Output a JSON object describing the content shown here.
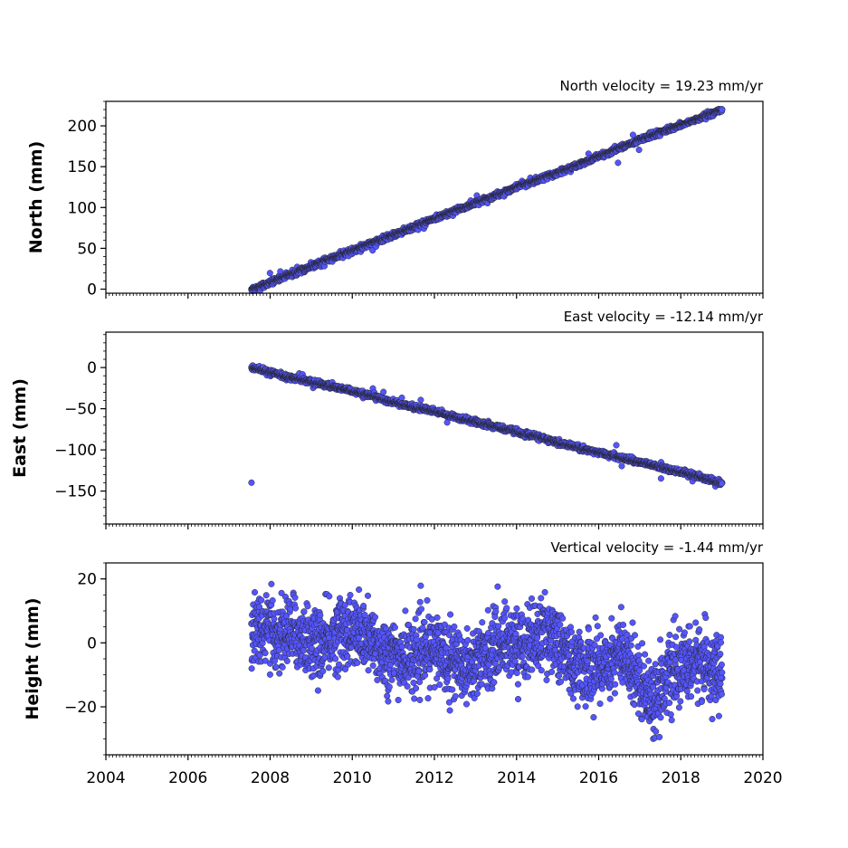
{
  "chart_data": [
    {
      "type": "scatter",
      "title": "North velocity = 19.23 mm/yr",
      "ylabel": "North (mm)",
      "xlim": [
        2004,
        2020
      ],
      "ylim": [
        -5,
        230
      ],
      "yticks": [
        0,
        50,
        100,
        150,
        200
      ],
      "ytick_labels": [
        "0",
        "50",
        "100",
        "150",
        "200"
      ],
      "x_tick_labels_shown": false,
      "marker_color": "#5555ff",
      "edge_color": "#222222",
      "series": [
        {
          "x": [
            2007.55,
            2008.0,
            2008.5,
            2009.0,
            2009.5,
            2010.0,
            2010.5,
            2011.0,
            2011.5,
            2012.0,
            2012.5,
            2013.0,
            2013.5,
            2014.0,
            2014.5,
            2015.0,
            2015.5,
            2016.0,
            2016.5,
            2017.0,
            2017.5,
            2018.0,
            2018.5,
            2019.0
          ],
          "y": [
            0,
            8,
            18,
            28,
            38,
            47,
            57,
            66,
            76,
            86,
            96,
            105,
            115,
            125,
            134,
            143,
            152,
            162,
            173,
            183,
            192,
            201,
            210,
            220
          ]
        }
      ],
      "trend": {
        "x0": 2007.55,
        "x1": 2019.05,
        "slope": 19.23,
        "y0": 0
      }
    },
    {
      "type": "scatter",
      "title": "East velocity = -12.14 mm/yr",
      "ylabel": "East (mm)",
      "xlim": [
        2004,
        2020
      ],
      "ylim": [
        -190,
        43
      ],
      "yticks": [
        0,
        -50,
        -100,
        -150
      ],
      "ytick_labels": [
        "0",
        "−50",
        "−100",
        "−150"
      ],
      "x_tick_labels_shown": false,
      "marker_color": "#5555ff",
      "edge_color": "#222222",
      "series": [
        {
          "x": [
            2007.55,
            2008.0,
            2008.5,
            2009.0,
            2009.5,
            2010.0,
            2010.5,
            2011.0,
            2011.5,
            2012.0,
            2012.5,
            2013.0,
            2013.5,
            2014.0,
            2014.5,
            2015.0,
            2015.5,
            2016.0,
            2016.5,
            2017.0,
            2017.5,
            2018.0,
            2018.5,
            2019.0
          ],
          "y": [
            0,
            -6,
            -12,
            -17,
            -23,
            -29,
            -35,
            -42,
            -48,
            -53,
            -60,
            -66,
            -72,
            -78,
            -84,
            -91,
            -97,
            -103,
            -109,
            -115,
            -121,
            -127,
            -133,
            -140
          ]
        }
      ],
      "trend": {
        "x0": 2007.55,
        "x1": 2019.05,
        "slope": -12.14,
        "y0": 0
      }
    },
    {
      "type": "scatter",
      "title": "Vertical velocity = -1.44 mm/yr",
      "ylabel": "Height (mm)",
      "xlim": [
        2004,
        2020
      ],
      "ylim": [
        -35,
        25
      ],
      "yticks": [
        20,
        0,
        -20
      ],
      "ytick_labels": [
        "20",
        "0",
        "−20"
      ],
      "xticks": [
        2004,
        2006,
        2008,
        2010,
        2012,
        2014,
        2016,
        2018,
        2020
      ],
      "xtick_labels": [
        "2004",
        "2006",
        "2008",
        "2010",
        "2012",
        "2014",
        "2016",
        "2018",
        "2020"
      ],
      "marker_color": "#5555ff",
      "edge_color": "#222222",
      "series": [
        {
          "x": [
            2007.55,
            2007.8,
            2008.1,
            2008.5,
            2008.9,
            2009.3,
            2009.7,
            2010.1,
            2010.5,
            2010.9,
            2011.3,
            2011.7,
            2012.1,
            2012.5,
            2012.9,
            2013.3,
            2013.7,
            2014.1,
            2014.5,
            2014.9,
            2015.3,
            2015.7,
            2016.1,
            2016.5,
            2016.9,
            2017.3,
            2017.7,
            2018.1,
            2018.5,
            2019.0
          ],
          "y": [
            6,
            5,
            2,
            4,
            1,
            -1,
            4,
            3,
            0,
            -4,
            -5,
            -3,
            -2,
            -6,
            -7,
            -3,
            1,
            -1,
            2,
            3,
            -6,
            -8,
            -7,
            -3,
            -9,
            -18,
            -10,
            -8,
            -5,
            -11
          ]
        }
      ],
      "trend": null
    }
  ]
}
